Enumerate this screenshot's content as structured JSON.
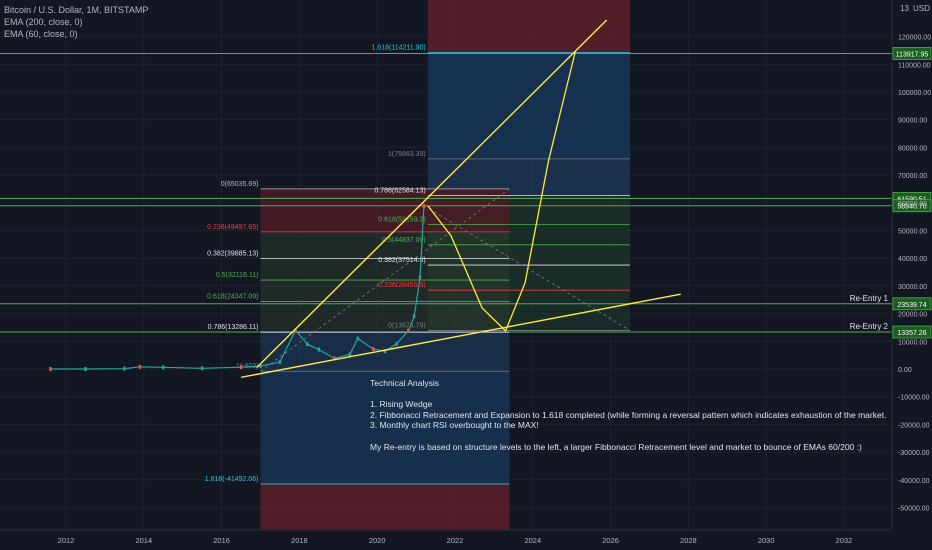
{
  "legend": {
    "symbol": "Bitcoin / U.S. Dollar, 1M, BITSTAMP",
    "ema200": "EMA (200, close, 0)",
    "ema60": "EMA (60, close, 0)"
  },
  "header": {
    "currency": "USD",
    "corner": "13"
  },
  "notes": {
    "title": "Technical Analysis",
    "line1": "1. Rising Wedge",
    "line2": "2. Fibbonacci Retracement and Expansion to 1.618 completed (while forming a reversal pattern which indicates exhaustion of the market.",
    "line3": "3. Monthly chart RSI overbought to the MAX!",
    "line4": "My Re-entry is based on structure levels to the left, a larger Fibbonacci Retracement level and market to bounce of EMAs 60/200 :)"
  },
  "colors": {
    "background": "#131722",
    "grid": "#1e222d",
    "green_level": "#4caf50",
    "yellow": "#ffeb3b",
    "fib_red_zone": "#5c1f2a",
    "fib_blue_zone": "#163454"
  },
  "chart_data": {
    "type": "line",
    "title": "Bitcoin / U.S. Dollar, 1M, BITSTAMP",
    "x_ticks": [
      "2012",
      "2014",
      "2016",
      "2018",
      "2020",
      "2022",
      "2024",
      "2026",
      "2028",
      "2030",
      "2032"
    ],
    "y_ticks": [
      "120000.00",
      "110000.00",
      "100000.00",
      "90000.00",
      "80000.00",
      "70000.00",
      "60000.00",
      "50000.00",
      "40000.00",
      "30000.00",
      "20000.00",
      "10000.00",
      "0.00",
      "-10000.00",
      "-20000.00",
      "-30000.00",
      "-40000.00",
      "-50000.00"
    ],
    "ylim": [
      -55000,
      132000
    ],
    "price_labels": [
      {
        "text": "113917.95",
        "value": 113917.95
      },
      {
        "text": "61590.51",
        "value": 61590.51
      },
      {
        "text": "58940.70",
        "value": 58940.7
      },
      {
        "text": "23539.74",
        "value": 23539.74
      },
      {
        "text": "13357.26",
        "value": 13357.26
      }
    ],
    "horizontal_levels": [
      {
        "value": 113917.95,
        "label": ""
      },
      {
        "value": 61590.51,
        "label": ""
      },
      {
        "value": 58940.7,
        "label": ""
      },
      {
        "value": 23539.74,
        "label": "Re-Entry 1"
      },
      {
        "value": 13357.26,
        "label": "Re-Entry 2"
      }
    ],
    "fib_retracement": {
      "x_start": 2017.0,
      "x_end": 2023.4,
      "levels": [
        {
          "text": "0(65035.69)",
          "value": 65035.69,
          "color": "#b2b5be"
        },
        {
          "text": "0.236(49497.65)",
          "value": 49497.65,
          "color": "#f23645"
        },
        {
          "text": "0.382(39885.13)",
          "value": 39885.13,
          "color": "#e0e3eb"
        },
        {
          "text": "0.5(32116.11)",
          "value": 32116.11,
          "color": "#4caf50"
        },
        {
          "text": "0.618(24347.09)",
          "value": 24347.09,
          "color": "#4caf50"
        },
        {
          "text": "0.786(13286.11)",
          "value": 13286.11,
          "color": "#e0e3eb"
        },
        {
          "text": "1(-803)",
          "value": -803,
          "color": "#787b86"
        },
        {
          "text": "1.618(-41492.06)",
          "value": -41492.06,
          "color": "#26c6da"
        }
      ]
    },
    "fib_extension": {
      "x_start": 2021.3,
      "x_end": 2026.5,
      "levels": [
        {
          "text": "1.618(114211.90)",
          "value": 114211.9,
          "color": "#26c6da"
        },
        {
          "text": "1(75863.39)",
          "value": 75863.39,
          "color": "#787b86"
        },
        {
          "text": "0.786(62584.13)",
          "value": 62584.13,
          "color": "#e0e3eb"
        },
        {
          "text": "0.618(52159.3)",
          "value": 52159.3,
          "color": "#4caf50"
        },
        {
          "text": "0.5(44837.00)",
          "value": 44837.0,
          "color": "#4caf50"
        },
        {
          "text": "0.382(37514.6)",
          "value": 37514.6,
          "color": "#e0e3eb"
        },
        {
          "text": "0.236(28455.3)",
          "value": 28455.3,
          "color": "#f23645"
        },
        {
          "text": "0(13874.79)",
          "value": 13874.79,
          "color": "#787b86"
        }
      ]
    },
    "series": [
      {
        "name": "",
        "x": [
          2011.6,
          2012.5,
          2013.5,
          2013.9,
          2014.5,
          2015.5,
          2016.5,
          2017.0,
          2017.5,
          2017.9,
          2018.2,
          2018.5,
          2018.9,
          2019.3,
          2019.5,
          2019.9,
          2020.2,
          2020.5,
          2020.8,
          2020.95,
          2021.1,
          2021.2
        ],
        "values": [
          5,
          10,
          120,
          800,
          600,
          250,
          650,
          1000,
          2500,
          14000,
          9000,
          7000,
          3800,
          5300,
          11000,
          7200,
          6400,
          9100,
          13800,
          19000,
          33000,
          58900
        ]
      }
    ],
    "wedge_lines": [
      {
        "x": [
          2016.9,
          2025.9
        ],
        "y": [
          500,
          126000
        ]
      },
      {
        "x": [
          2016.5,
          2027.8
        ],
        "y": [
          -3000,
          27000
        ]
      }
    ],
    "projection": {
      "x": [
        2021.3,
        2021.9,
        2022.7,
        2023.3,
        2023.8,
        2024.4,
        2025.1
      ],
      "y": [
        59000,
        48000,
        22000,
        13800,
        31000,
        75000,
        115000
      ]
    }
  }
}
